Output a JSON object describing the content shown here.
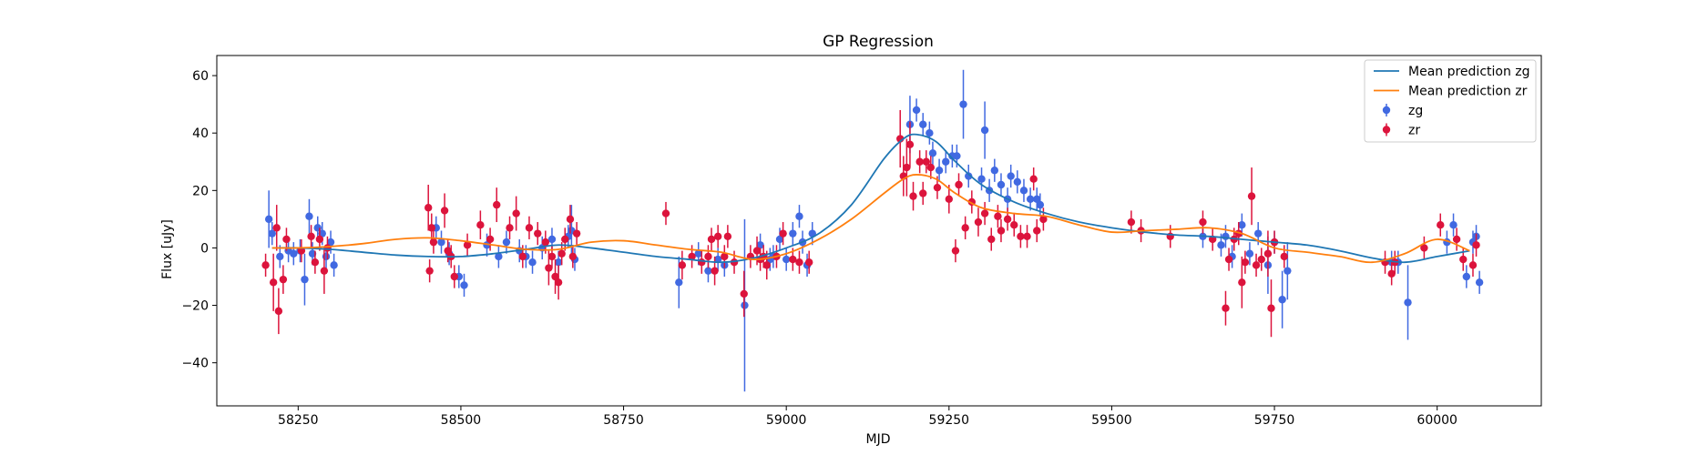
{
  "chart_data": {
    "type": "scatter",
    "title": "GP Regression",
    "xlabel": "MJD",
    "ylabel": "Flux [uJy]",
    "xlim": [
      58125,
      60160
    ],
    "ylim": [
      -55,
      67
    ],
    "xticks": [
      58250,
      58500,
      58750,
      59000,
      59250,
      59500,
      59750,
      60000
    ],
    "yticks": [
      -40,
      -20,
      0,
      20,
      40,
      60
    ],
    "grid": false,
    "legend_position": "top-right",
    "colors": {
      "zg_mean": "#1f77b4",
      "zr_mean": "#ff7f0e",
      "zg_points": "#4169e1",
      "zr_points": "#dc143c"
    },
    "legend": [
      {
        "label": "Mean prediction zg",
        "kind": "line",
        "series": "zg_mean"
      },
      {
        "label": "Mean prediction zr",
        "kind": "line",
        "series": "zr_mean"
      },
      {
        "label": "zg",
        "kind": "point",
        "series": "zg_points"
      },
      {
        "label": "zr",
        "kind": "point",
        "series": "zr_points"
      }
    ],
    "lines": [
      {
        "name": "Mean prediction zg",
        "color_key": "zg_mean",
        "x": [
          58210,
          58250,
          58300,
          58350,
          58400,
          58450,
          58500,
          58550,
          58600,
          58650,
          58700,
          58750,
          58800,
          58850,
          58900,
          58950,
          59000,
          59050,
          59100,
          59150,
          59180,
          59200,
          59230,
          59260,
          59300,
          59350,
          59400,
          59450,
          59500,
          59550,
          59600,
          59650,
          59700,
          59750,
          59800,
          59850,
          59900,
          59950,
          60000,
          60050
        ],
        "y": [
          0,
          0,
          -0.5,
          -1.5,
          -2.5,
          -3,
          -3,
          -2,
          -0.5,
          1,
          0,
          -1.5,
          -3,
          -4,
          -5,
          -3.5,
          0,
          5,
          15,
          31,
          38,
          39.5,
          37,
          30,
          22,
          16,
          12,
          9,
          7,
          5.5,
          4.5,
          4,
          3,
          2,
          1,
          -1,
          -3.5,
          -5,
          -3,
          -1
        ]
      },
      {
        "name": "Mean prediction zr",
        "color_key": "zr_mean",
        "x": [
          58210,
          58250,
          58300,
          58350,
          58400,
          58450,
          58500,
          58550,
          58600,
          58650,
          58700,
          58750,
          58800,
          58850,
          58900,
          58950,
          59000,
          59050,
          59100,
          59150,
          59180,
          59200,
          59230,
          59260,
          59300,
          59350,
          59400,
          59450,
          59500,
          59550,
          59600,
          59650,
          59700,
          59750,
          59800,
          59850,
          59900,
          59950,
          60000,
          60050
        ],
        "y": [
          0,
          0,
          0.5,
          1.5,
          3,
          3.5,
          2.5,
          1,
          -0.5,
          -0.5,
          2,
          2.5,
          1,
          -0.5,
          -1.5,
          -4,
          -2,
          3,
          10,
          19,
          24,
          25.5,
          24,
          19,
          14,
          12,
          11,
          8,
          5.5,
          6,
          6.5,
          7,
          5,
          0,
          -1.5,
          -3,
          -5,
          -2,
          3,
          -1
        ]
      }
    ],
    "series": [
      {
        "name": "zg",
        "color_key": "zg_points",
        "x": [
          58205,
          58210,
          58222,
          58235,
          58243,
          58253,
          58260,
          58267,
          58272,
          58280,
          58287,
          58293,
          58300,
          58305,
          58462,
          58470,
          58482,
          58497,
          58505,
          58540,
          58558,
          58570,
          58590,
          58600,
          58610,
          58625,
          58640,
          58650,
          58665,
          58670,
          58675,
          58835,
          58865,
          58880,
          58895,
          58905,
          58936,
          58960,
          58975,
          58980,
          58990,
          59000,
          59010,
          59020,
          59025,
          59032,
          59040,
          59190,
          59200,
          59210,
          59220,
          59225,
          59235,
          59245,
          59255,
          59262,
          59272,
          59280,
          59300,
          59305,
          59312,
          59320,
          59330,
          59340,
          59345,
          59355,
          59365,
          59375,
          59385,
          59390,
          59640,
          59668,
          59675,
          59685,
          59700,
          59712,
          59725,
          59740,
          59750,
          59762,
          59770,
          59930,
          59940,
          59955,
          60015,
          60025,
          60045,
          60055,
          60060,
          60065
        ],
        "y": [
          10,
          5,
          -3,
          -1,
          -2,
          -1,
          -11,
          11,
          -2,
          7,
          5,
          -3,
          2,
          -6,
          7,
          2,
          -2,
          -10,
          -13,
          1,
          -3,
          2,
          -1,
          -3,
          -5,
          0,
          3,
          -5,
          4,
          6,
          -4,
          -12,
          -2,
          -8,
          -4,
          -6,
          -20,
          1,
          -4,
          -3,
          3,
          -4,
          5,
          11,
          2,
          -6,
          5,
          43,
          48,
          43,
          40,
          33,
          27,
          30,
          32,
          32,
          50,
          25,
          24,
          41,
          20,
          27,
          22,
          17,
          25,
          23,
          20,
          17,
          17,
          15,
          4,
          1,
          4,
          -3,
          8,
          -2,
          5,
          -6,
          2,
          -18,
          -8,
          -5,
          -5,
          -19,
          2,
          8,
          -10,
          2,
          4,
          -12
        ],
        "err": [
          10,
          4,
          4,
          4,
          4,
          4,
          9,
          6,
          4,
          4,
          4,
          4,
          4,
          4,
          4,
          4,
          4,
          4,
          4,
          4,
          4,
          4,
          4,
          4,
          4,
          4,
          4,
          4,
          4,
          9,
          4,
          9,
          4,
          4,
          4,
          4,
          30,
          4,
          4,
          4,
          4,
          4,
          4,
          4,
          4,
          4,
          4,
          10,
          4,
          4,
          4,
          4,
          4,
          4,
          4,
          4,
          12,
          4,
          4,
          10,
          4,
          4,
          4,
          4,
          4,
          4,
          4,
          4,
          4,
          4,
          4,
          4,
          4,
          4,
          4,
          4,
          4,
          10,
          4,
          10,
          10,
          4,
          4,
          13,
          4,
          4,
          4,
          4,
          4,
          4
        ]
      },
      {
        "name": "zr",
        "color_key": "zr_points",
        "x": [
          58200,
          58212,
          58217,
          58220,
          58227,
          58232,
          58255,
          58270,
          58276,
          58283,
          58290,
          58295,
          58450,
          58452,
          58455,
          58458,
          58475,
          58480,
          58485,
          58490,
          58510,
          58530,
          58545,
          58555,
          58575,
          58585,
          58595,
          58605,
          58618,
          58630,
          58635,
          58640,
          58645,
          58650,
          58655,
          58660,
          58668,
          58672,
          58678,
          58815,
          58840,
          58855,
          58870,
          58880,
          58885,
          58890,
          58895,
          58905,
          58910,
          58920,
          58935,
          58945,
          58955,
          58960,
          58965,
          58970,
          58985,
          58995,
          59010,
          59020,
          59035,
          59175,
          59180,
          59185,
          59190,
          59195,
          59205,
          59210,
          59215,
          59222,
          59232,
          59250,
          59260,
          59265,
          59275,
          59285,
          59295,
          59305,
          59315,
          59325,
          59330,
          59340,
          59350,
          59360,
          59370,
          59380,
          59385,
          59395,
          59530,
          59545,
          59590,
          59640,
          59655,
          59675,
          59680,
          59688,
          59695,
          59700,
          59705,
          59715,
          59722,
          59730,
          59740,
          59745,
          59750,
          59765,
          59920,
          59930,
          59935,
          59980,
          60005,
          60030,
          60040,
          60055,
          60060
        ],
        "y": [
          -6,
          -12,
          7,
          -22,
          -11,
          3,
          -1,
          4,
          -5,
          3,
          -8,
          0,
          14,
          -8,
          7,
          2,
          13,
          -1,
          -3,
          -10,
          1,
          8,
          3,
          15,
          7,
          12,
          -3,
          7,
          5,
          2,
          -7,
          -3,
          -10,
          -12,
          -2,
          3,
          10,
          -3,
          5,
          12,
          -6,
          -3,
          -5,
          -3,
          3,
          -8,
          4,
          -3,
          4,
          -5,
          -16,
          -3,
          -1,
          -4,
          -3,
          -6,
          -3,
          5,
          -4,
          -5,
          -5,
          38,
          25,
          28,
          36,
          18,
          30,
          19,
          30,
          28,
          21,
          17,
          -1,
          22,
          7,
          16,
          9,
          12,
          3,
          11,
          6,
          10,
          8,
          4,
          4,
          24,
          6,
          10,
          9,
          6,
          4,
          9,
          3,
          -21,
          -4,
          3,
          5,
          -12,
          -5,
          18,
          -6,
          -4,
          -2,
          -21,
          2,
          -3,
          -5,
          -9,
          -5,
          0,
          8,
          3,
          -4,
          -6,
          1
        ],
        "err": [
          4,
          10,
          8,
          8,
          5,
          4,
          4,
          4,
          4,
          4,
          8,
          4,
          8,
          4,
          5,
          4,
          6,
          4,
          4,
          4,
          4,
          5,
          4,
          6,
          4,
          6,
          4,
          4,
          4,
          4,
          6,
          4,
          6,
          6,
          4,
          4,
          5,
          4,
          4,
          4,
          5,
          4,
          4,
          4,
          4,
          5,
          4,
          4,
          4,
          4,
          8,
          4,
          5,
          4,
          4,
          5,
          4,
          4,
          4,
          4,
          4,
          10,
          7,
          10,
          8,
          5,
          4,
          4,
          4,
          4,
          4,
          5,
          4,
          4,
          4,
          4,
          5,
          4,
          4,
          4,
          4,
          4,
          4,
          4,
          4,
          4,
          4,
          4,
          4,
          4,
          4,
          4,
          4,
          6,
          4,
          4,
          4,
          9,
          4,
          10,
          4,
          4,
          8,
          10,
          4,
          4,
          4,
          4,
          4,
          4,
          4,
          4,
          4,
          4,
          4
        ]
      }
    ]
  }
}
